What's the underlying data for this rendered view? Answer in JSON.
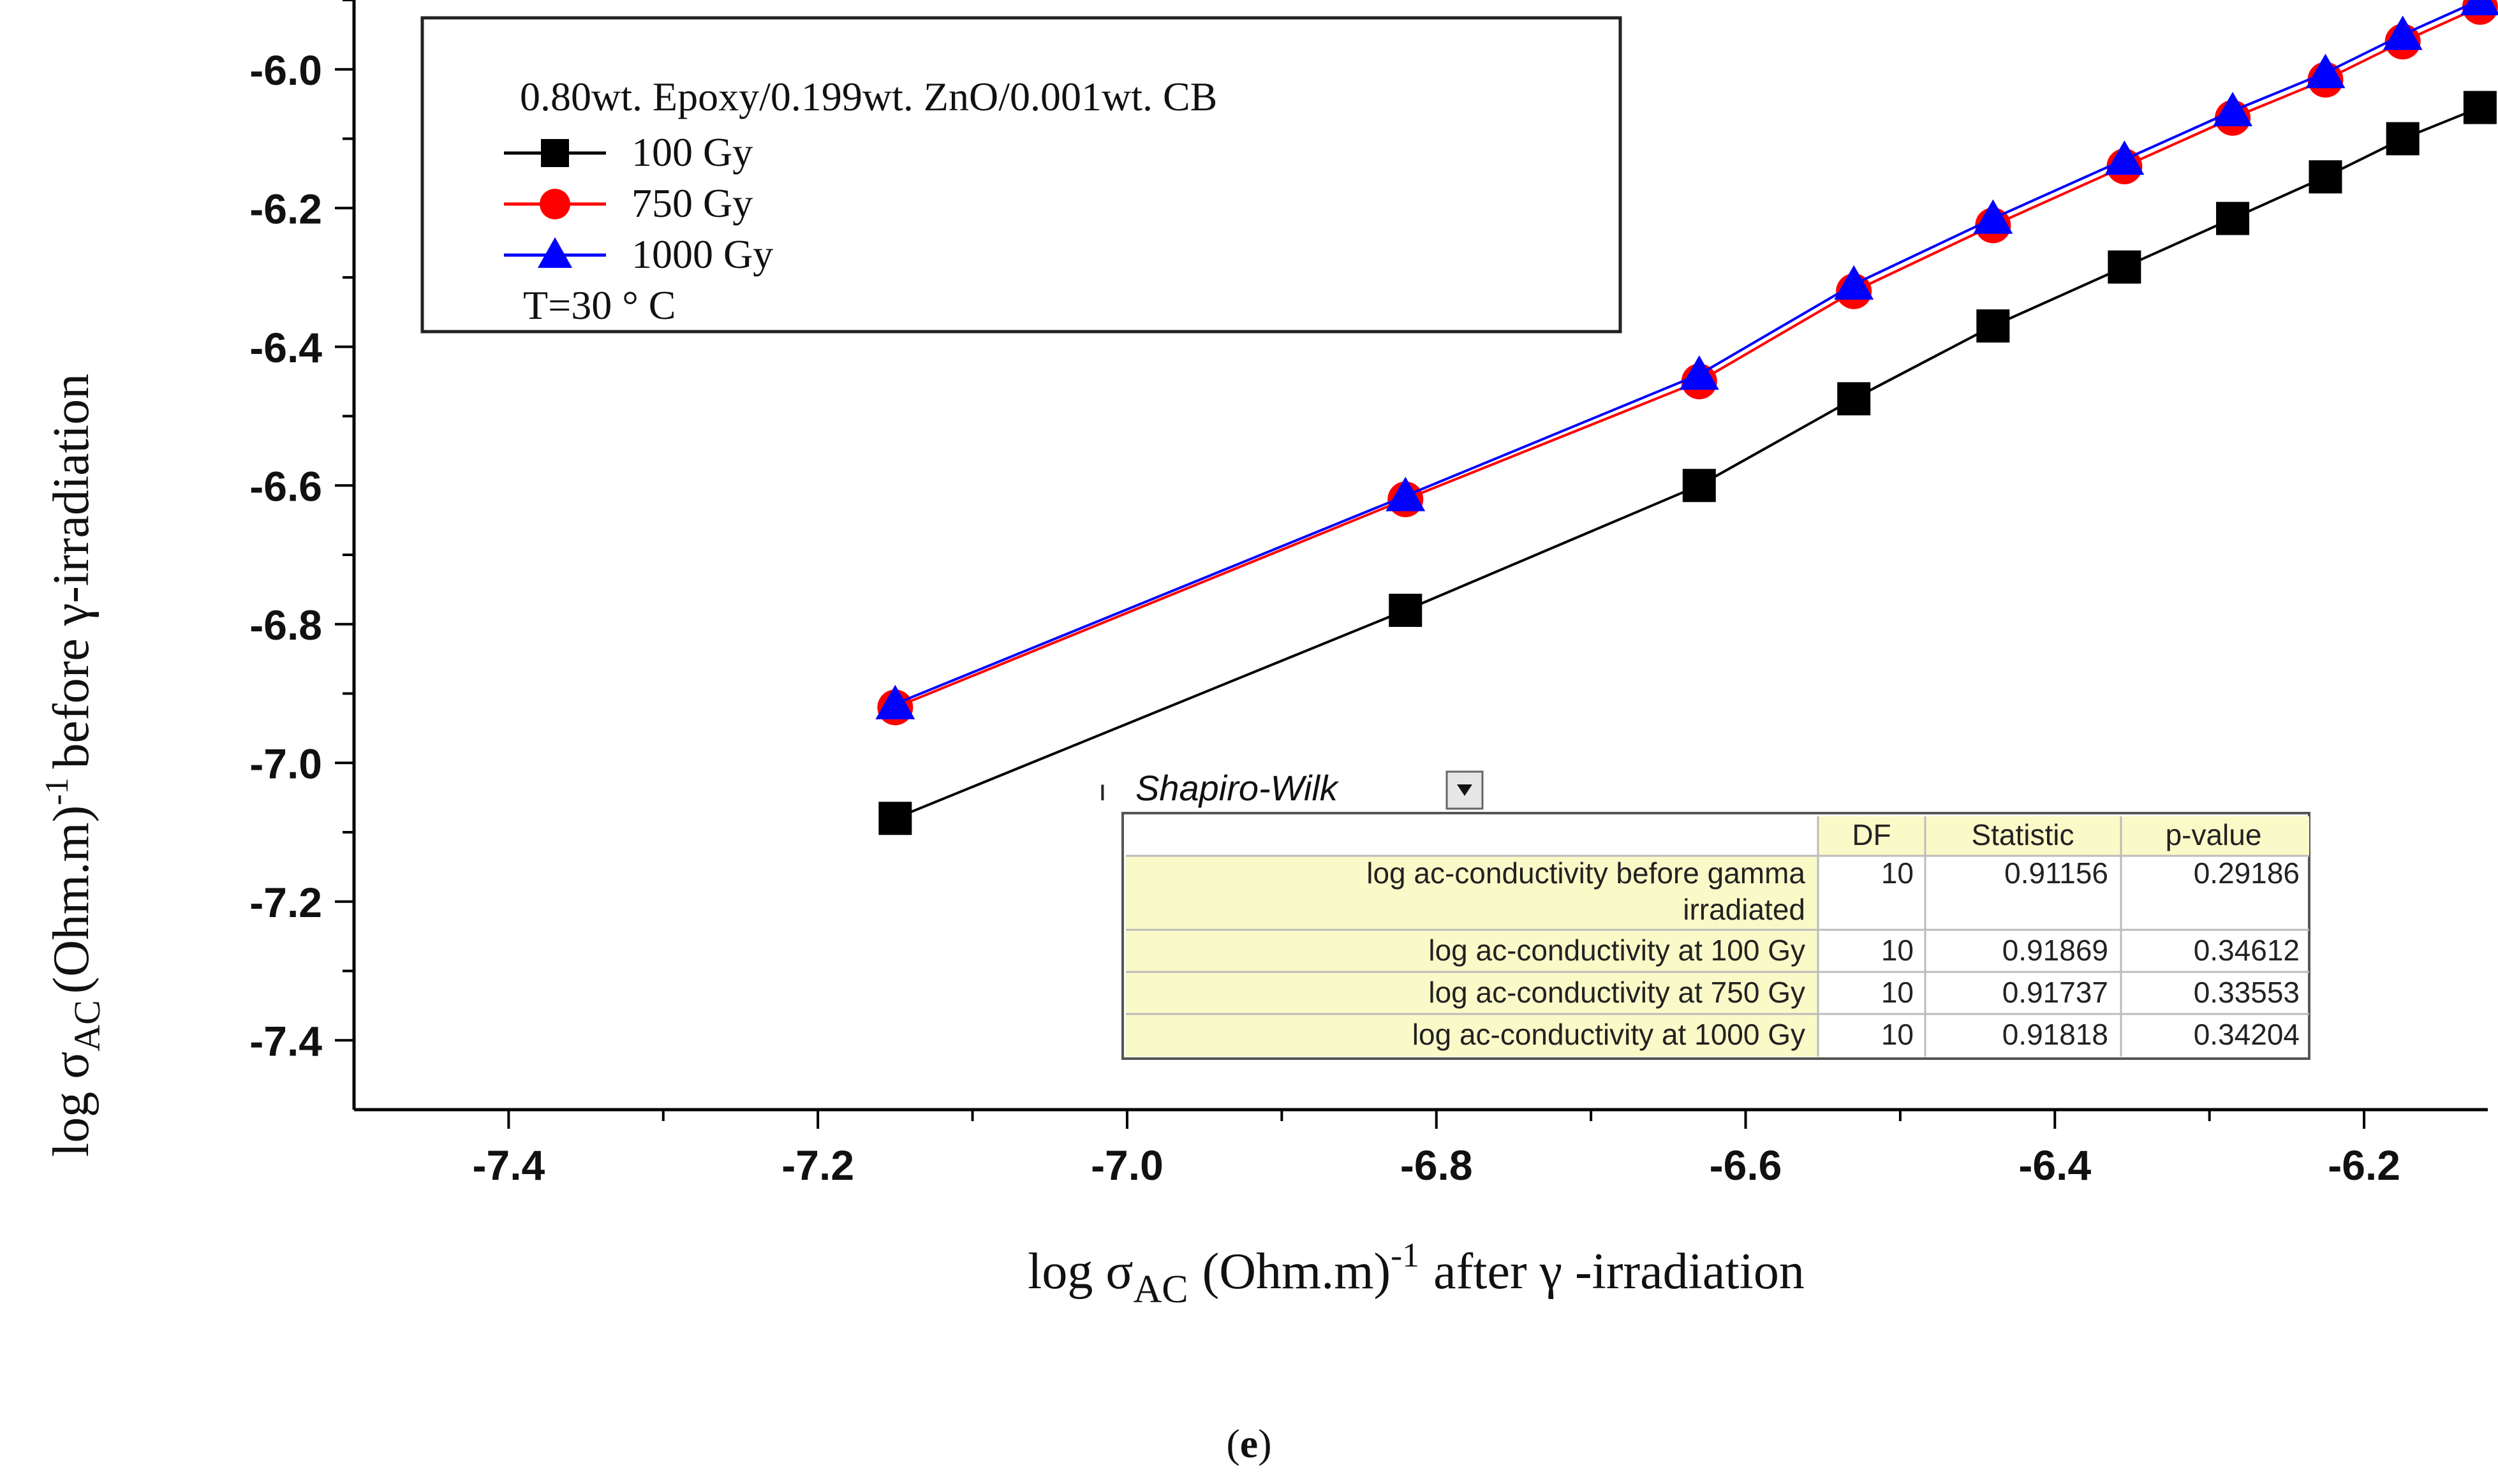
{
  "chart_data": {
    "type": "line",
    "title": "",
    "xlabel": {
      "pre": "log σ",
      "sub": "AC",
      "mid": "(Ohm.m)",
      "sup": "-1",
      "post": "after  γ -irradiation"
    },
    "ylabel": {
      "pre": "log σ",
      "sub": "AC",
      "mid": "(Ohm.m)",
      "sup": "-1",
      "post": "before γ-irradiation"
    },
    "xlim": [
      -7.5,
      -6.12
    ],
    "ylim": [
      -7.5,
      -5.9
    ],
    "xticks": [
      -7.4,
      -7.2,
      -7.0,
      -6.8,
      -6.6,
      -6.4,
      -6.2
    ],
    "xtick_labels": [
      "-7.4",
      "-7.2",
      "-7.0",
      "-6.8",
      "-6.6",
      "-6.4",
      "-6.2"
    ],
    "yticks": [
      -6.0,
      -6.2,
      -6.4,
      -6.6,
      -6.8,
      -7.0,
      -7.2,
      -7.4
    ],
    "ytick_labels": [
      "-6.0",
      "-6.2",
      "-6.4",
      "-6.6",
      "-6.8",
      "-7.0",
      "-7.2",
      "-7.4"
    ],
    "grid": false,
    "legend": {
      "position": "top-left",
      "header": "0.80wt. Epoxy/0.199wt. ZnO/0.001wt. CB",
      "footer": "T=30 ° C"
    },
    "series": [
      {
        "name": "100 Gy",
        "color": "#000000",
        "marker": "square",
        "x": [
          -7.15,
          -6.82,
          -6.63,
          -6.53,
          -6.44,
          -6.355,
          -6.285,
          -6.225,
          -6.175,
          -6.125
        ],
        "y": [
          -7.08,
          -6.78,
          -6.6,
          -6.475,
          -6.37,
          -6.285,
          -6.215,
          -6.155,
          -6.1,
          -6.055
        ]
      },
      {
        "name": "750 Gy",
        "color": "#ff0000",
        "marker": "circle",
        "x": [
          -7.15,
          -6.82,
          -6.63,
          -6.53,
          -6.44,
          -6.355,
          -6.285,
          -6.225,
          -6.175,
          -6.125
        ],
        "y": [
          -6.92,
          -6.62,
          -6.45,
          -6.32,
          -6.225,
          -6.14,
          -6.07,
          -6.015,
          -5.96,
          -5.91
        ]
      },
      {
        "name": "1000 Gy",
        "color": "#0000ff",
        "marker": "triangle",
        "x": [
          -7.15,
          -6.82,
          -6.63,
          -6.53,
          -6.44,
          -6.355,
          -6.285,
          -6.225,
          -6.175,
          -6.125
        ],
        "y": [
          -6.915,
          -6.615,
          -6.44,
          -6.31,
          -6.215,
          -6.13,
          -6.06,
          -6.005,
          -5.95,
          -5.9
        ]
      }
    ],
    "table": {
      "title": "Shapiro-Wilk",
      "headers": [
        "DF",
        "Statistic",
        "p-value"
      ],
      "rows": [
        {
          "label": [
            "log ac-conductivity before gamma",
            "irradiated"
          ],
          "df": "10",
          "stat": "0.91156",
          "p": "0.29186"
        },
        {
          "label": [
            "log ac-conductivity  at 100 Gy"
          ],
          "df": "10",
          "stat": "0.91869",
          "p": "0.34612"
        },
        {
          "label": [
            "log ac-conductivity  at 750 Gy"
          ],
          "df": "10",
          "stat": "0.91737",
          "p": "0.33553"
        },
        {
          "label": [
            "log ac-conductivity  at 1000 Gy"
          ],
          "df": "10",
          "stat": "0.91818",
          "p": "0.34204"
        }
      ]
    }
  },
  "caption": {
    "open": "(",
    "letter": "e",
    "close": ")"
  }
}
